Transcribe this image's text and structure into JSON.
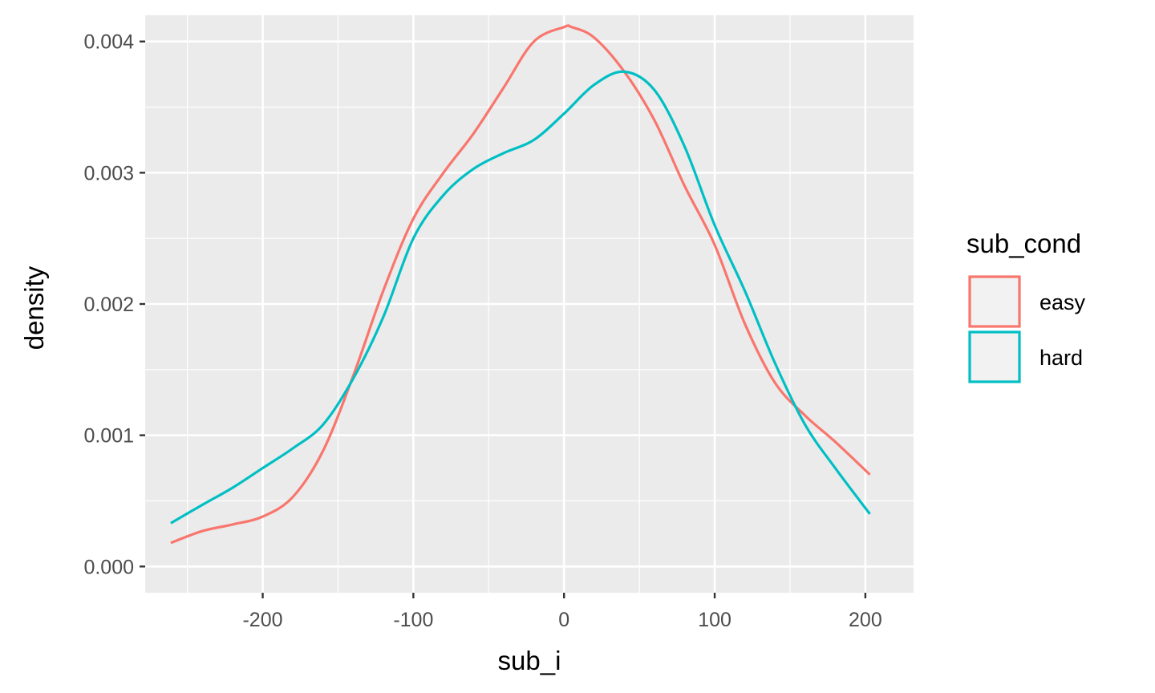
{
  "chart_data": {
    "type": "line",
    "title": "",
    "xlabel": "sub_i",
    "ylabel": "density",
    "xlim": [
      -278,
      232
    ],
    "ylim": [
      -0.0002,
      0.0042
    ],
    "x_ticks": [
      -200,
      -100,
      0,
      100,
      200
    ],
    "x_tick_labels": [
      "-200",
      "-100",
      "0",
      "100",
      "200"
    ],
    "y_ticks": [
      0.0,
      0.001,
      0.002,
      0.003,
      0.004
    ],
    "y_tick_labels": [
      "0.000",
      "0.001",
      "0.002",
      "0.003",
      "0.004"
    ],
    "grid": true,
    "legend": {
      "title": "sub_cond",
      "position": "right"
    },
    "series": [
      {
        "name": "easy",
        "color": "#F8766D",
        "x": [
          -261,
          -240,
          -220,
          -200,
          -180,
          -160,
          -140,
          -120,
          -100,
          -80,
          -60,
          -40,
          -20,
          0,
          5,
          20,
          40,
          60,
          80,
          100,
          120,
          140,
          160,
          180,
          203
        ],
        "y": [
          0.00018,
          0.00027,
          0.00032,
          0.00038,
          0.00053,
          0.00088,
          0.00145,
          0.0021,
          0.00265,
          0.003,
          0.0033,
          0.00365,
          0.004,
          0.00411,
          0.00411,
          0.00403,
          0.00377,
          0.0034,
          0.0029,
          0.00245,
          0.00185,
          0.0014,
          0.00115,
          0.00095,
          0.0007
        ]
      },
      {
        "name": "hard",
        "color": "#00BFC4",
        "x": [
          -261,
          -240,
          -220,
          -200,
          -180,
          -160,
          -140,
          -120,
          -100,
          -80,
          -60,
          -40,
          -20,
          0,
          20,
          40,
          60,
          80,
          100,
          120,
          140,
          160,
          180,
          203
        ],
        "y": [
          0.00033,
          0.00047,
          0.0006,
          0.00075,
          0.0009,
          0.00108,
          0.00143,
          0.0019,
          0.0025,
          0.00283,
          0.00303,
          0.00315,
          0.00325,
          0.00345,
          0.00367,
          0.00377,
          0.00363,
          0.0032,
          0.0026,
          0.0021,
          0.00155,
          0.00108,
          0.00075,
          0.0004
        ]
      }
    ]
  }
}
